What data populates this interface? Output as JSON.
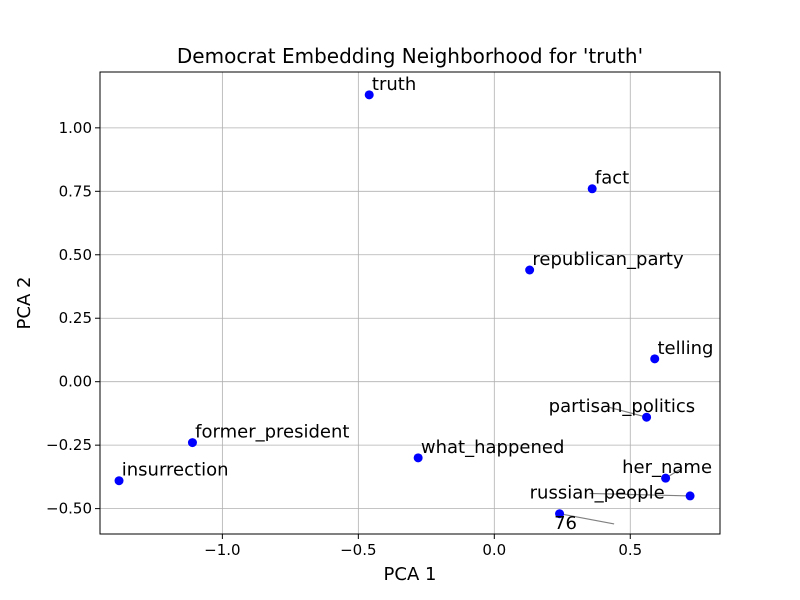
{
  "chart_data": {
    "type": "scatter",
    "title": "Democrat Embedding Neighborhood for 'truth'",
    "xlabel": "PCA 1",
    "ylabel": "PCA 2",
    "xlim": [
      -1.45,
      0.83
    ],
    "ylim": [
      -0.6,
      1.22
    ],
    "xticks": [
      -1.0,
      -0.5,
      0.0,
      0.5
    ],
    "xtick_labels": [
      "−1.0",
      "−0.5",
      "0.0",
      "0.5"
    ],
    "yticks": [
      -0.5,
      -0.25,
      0.0,
      0.25,
      0.5,
      0.75,
      1.0
    ],
    "ytick_labels": [
      "−0.50",
      "−0.25",
      "0.00",
      "0.25",
      "0.50",
      "0.75",
      "1.00"
    ],
    "grid": true,
    "point_color": "#0000ff",
    "leader_color": "#808080",
    "points": [
      {
        "label": "truth",
        "x": -0.46,
        "y": 1.13,
        "label_x": -0.45,
        "label_y": 1.15
      },
      {
        "label": "fact",
        "x": 0.36,
        "y": 0.76,
        "label_x": 0.37,
        "label_y": 0.78
      },
      {
        "label": "republican_party",
        "x": 0.13,
        "y": 0.44,
        "label_x": 0.14,
        "label_y": 0.46
      },
      {
        "label": "telling",
        "x": 0.59,
        "y": 0.09,
        "label_x": 0.6,
        "label_y": 0.11
      },
      {
        "label": "partisan_politics",
        "x": 0.56,
        "y": -0.14,
        "label_x": 0.2,
        "label_y": -0.12
      },
      {
        "label": "former_president",
        "x": -1.11,
        "y": -0.24,
        "label_x": -1.1,
        "label_y": -0.22
      },
      {
        "label": "what_happened",
        "x": -0.28,
        "y": -0.3,
        "label_x": -0.27,
        "label_y": -0.28
      },
      {
        "label": "insurrection",
        "x": -1.38,
        "y": -0.39,
        "label_x": -1.37,
        "label_y": -0.37
      },
      {
        "label": "her_name",
        "x": 0.63,
        "y": -0.38,
        "label_x": 0.47,
        "label_y": -0.36
      },
      {
        "label": "russian_people",
        "x": 0.72,
        "y": -0.45,
        "label_x": 0.13,
        "label_y": -0.46
      },
      {
        "label": "76",
        "x": 0.24,
        "y": -0.52,
        "label_x": 0.22,
        "label_y": -0.58
      }
    ]
  }
}
